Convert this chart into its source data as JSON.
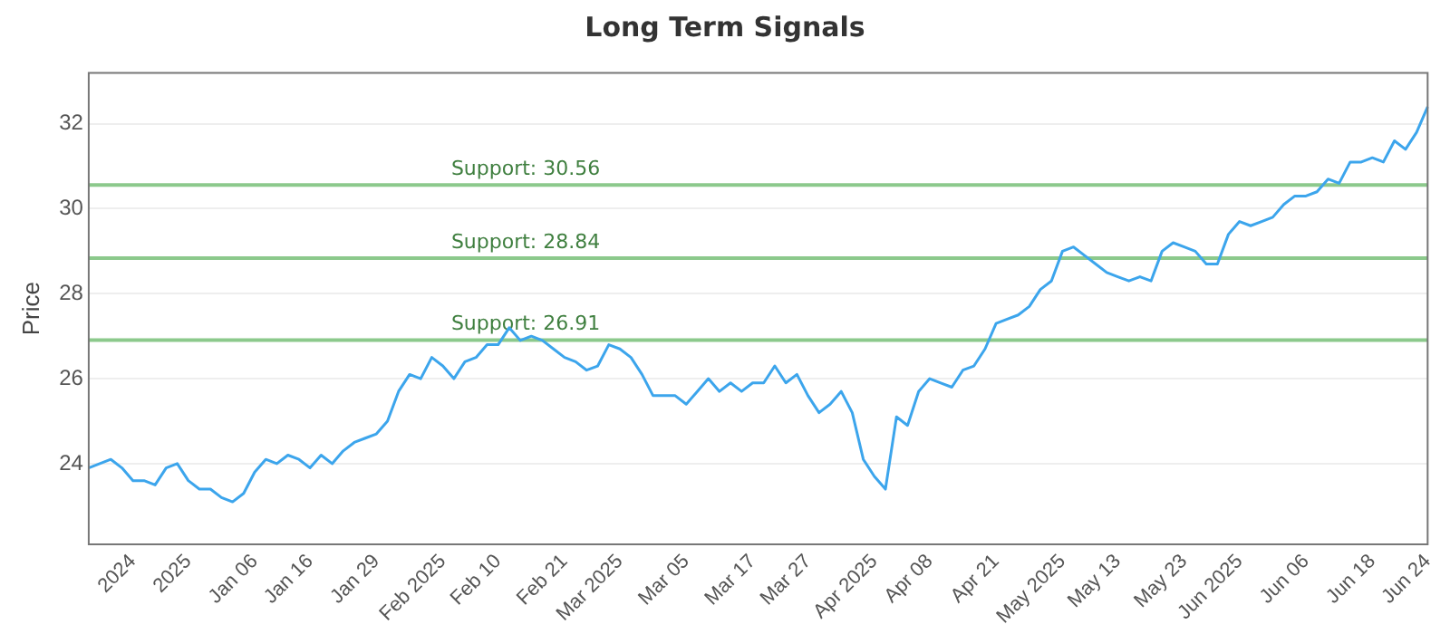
{
  "chart_data": {
    "type": "line",
    "title": "Long Term Signals",
    "ylabel": "Price",
    "categories": [
      null,
      null,
      null,
      null,
      "2024",
      null,
      null,
      null,
      null,
      "2025",
      null,
      null,
      null,
      null,
      null,
      "Jan 06",
      null,
      null,
      null,
      null,
      "Jan 16",
      null,
      null,
      null,
      null,
      null,
      "Jan 29",
      null,
      null,
      null,
      null,
      null,
      "Feb 2025",
      null,
      null,
      null,
      null,
      "Feb 10",
      null,
      null,
      null,
      null,
      null,
      "Feb 21",
      null,
      null,
      null,
      null,
      "Mar 2025",
      null,
      null,
      null,
      null,
      null,
      "Mar 05",
      null,
      null,
      null,
      null,
      null,
      "Mar 17",
      null,
      null,
      null,
      null,
      "Mar 27",
      null,
      null,
      null,
      null,
      null,
      "Apr 2025",
      null,
      null,
      null,
      null,
      "Apr 08",
      null,
      null,
      null,
      null,
      null,
      "Apr 21",
      null,
      null,
      null,
      null,
      null,
      "May 2025",
      null,
      null,
      null,
      null,
      "May 13",
      null,
      null,
      null,
      null,
      null,
      "May 23",
      null,
      null,
      null,
      null,
      "Jun 2025",
      null,
      null,
      null,
      null,
      null,
      "Jun 06",
      null,
      null,
      null,
      null,
      null,
      "Jun 18",
      null,
      null,
      null,
      null,
      "Jun 24"
    ],
    "series": [
      {
        "color": "#3ca5ec",
        "values": [
          23.9,
          24.0,
          24.1,
          23.9,
          23.6,
          23.6,
          23.5,
          23.9,
          24.0,
          23.6,
          23.4,
          23.4,
          23.2,
          23.1,
          23.3,
          23.8,
          24.1,
          24.0,
          24.2,
          24.1,
          23.9,
          24.2,
          24.0,
          24.3,
          24.5,
          24.6,
          24.7,
          25.0,
          25.7,
          26.1,
          26.0,
          26.5,
          26.3,
          26.0,
          26.4,
          26.5,
          26.8,
          26.8,
          27.2,
          26.9,
          27.0,
          26.9,
          26.7,
          26.5,
          26.4,
          26.2,
          26.3,
          26.8,
          26.7,
          26.5,
          26.1,
          25.6,
          25.6,
          25.6,
          25.4,
          25.7,
          26.0,
          25.7,
          25.9,
          25.7,
          25.9,
          25.9,
          26.3,
          25.9,
          26.1,
          25.6,
          25.2,
          25.4,
          25.7,
          25.2,
          24.1,
          23.7,
          23.4,
          25.1,
          24.9,
          25.7,
          26.0,
          25.9,
          25.8,
          26.2,
          26.3,
          26.7,
          27.3,
          27.4,
          27.5,
          27.7,
          28.1,
          28.3,
          29.0,
          29.1,
          28.9,
          28.7,
          28.5,
          28.4,
          28.3,
          28.4,
          28.3,
          29.0,
          29.2,
          29.1,
          29.0,
          28.7,
          28.7,
          29.4,
          29.7,
          29.6,
          29.7,
          29.8,
          30.1,
          30.3,
          30.3,
          30.4,
          30.7,
          30.6,
          31.1,
          31.1,
          31.2,
          31.1,
          31.6,
          31.4,
          31.8,
          32.4
        ]
      }
    ],
    "ylim": [
      22.1,
      33.2
    ],
    "yticks": [
      24,
      26,
      28,
      30,
      32
    ],
    "grid": "y",
    "legend": false,
    "marker": "none",
    "line_style": "solid",
    "ref_lines": [
      {
        "axis": "y",
        "value": 30.56,
        "label": "Support: 30.56",
        "color": "#8cc98c"
      },
      {
        "axis": "y",
        "value": 28.84,
        "label": "Support: 28.84",
        "color": "#8cc98c"
      },
      {
        "axis": "y",
        "value": 26.91,
        "label": "Support: 26.91",
        "color": "#8cc98c"
      }
    ]
  }
}
